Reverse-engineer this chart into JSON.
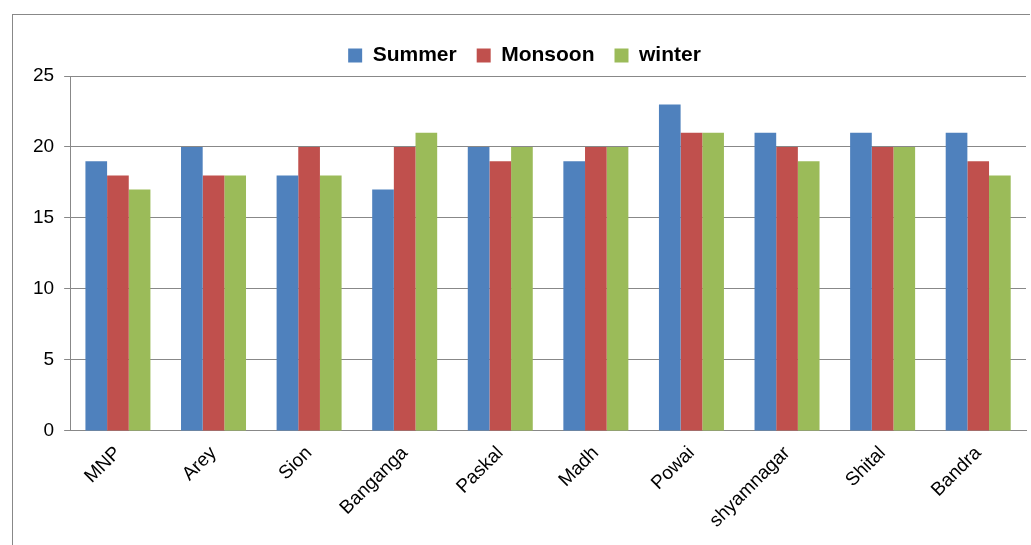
{
  "chart_data": {
    "type": "bar",
    "categories": [
      "MNP",
      "Arey",
      "Sion",
      "Banganga",
      "Paskal",
      "Madh",
      "Powai",
      "shyamnagar",
      "Shital",
      "Bandra"
    ],
    "series": [
      {
        "name": "Summer",
        "color": "#4f81bd",
        "values": [
          19,
          20,
          18,
          17,
          20,
          19,
          23,
          21,
          21,
          21
        ]
      },
      {
        "name": "Monsoon",
        "color": "#c0504d",
        "values": [
          18,
          18,
          20,
          20,
          19,
          20,
          21,
          20,
          20,
          19
        ]
      },
      {
        "name": "winter",
        "color": "#9bbb59",
        "values": [
          17,
          18,
          18,
          21,
          20,
          20,
          21,
          19,
          20,
          18
        ]
      }
    ],
    "ylim": [
      0,
      25
    ],
    "yticks": [
      0,
      5,
      10,
      15,
      20,
      25
    ],
    "grid": "y",
    "legend": "top"
  }
}
